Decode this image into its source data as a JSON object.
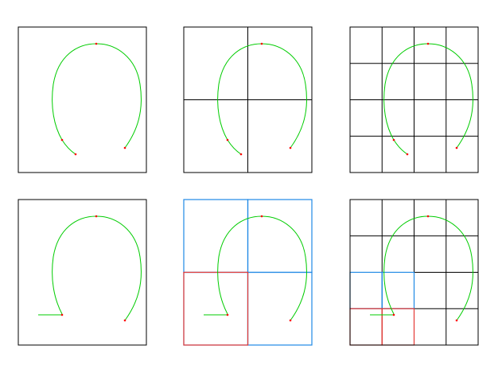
{
  "colors": {
    "background": "#ffffff",
    "frame": "#000000",
    "grid": "#000000",
    "curve": "#00cc00",
    "point": "#ff0000",
    "highlight_blue": "#1e88e5",
    "highlight_red": "#e53935"
  },
  "panels": [
    {
      "id": "top-1",
      "row": 0,
      "col": 0,
      "grid": 1,
      "curve": "arc",
      "highlights": []
    },
    {
      "id": "top-2",
      "row": 0,
      "col": 1,
      "grid": 2,
      "curve": "arc",
      "highlights": []
    },
    {
      "id": "top-3",
      "row": 0,
      "col": 2,
      "grid": 4,
      "curve": "arc",
      "highlights": []
    },
    {
      "id": "bottom-1",
      "row": 1,
      "col": 0,
      "grid": 1,
      "curve": "arc-with-tail",
      "highlights": []
    },
    {
      "id": "bottom-2",
      "row": 1,
      "col": 1,
      "grid": 2,
      "curve": "arc-with-tail",
      "highlights": [
        {
          "cells": "all",
          "color": "highlight_blue"
        },
        {
          "cells": [
            [
              1,
              0
            ]
          ],
          "color": "highlight_red"
        }
      ]
    },
    {
      "id": "bottom-3",
      "row": 1,
      "col": 2,
      "grid": 4,
      "curve": "arc-with-tail",
      "highlights": [
        {
          "cells": [
            [
              2,
              0
            ],
            [
              2,
              1
            ]
          ],
          "color": "highlight_blue"
        },
        {
          "cells": [
            [
              3,
              0
            ],
            [
              3,
              1
            ]
          ],
          "color": "highlight_red"
        }
      ]
    }
  ]
}
